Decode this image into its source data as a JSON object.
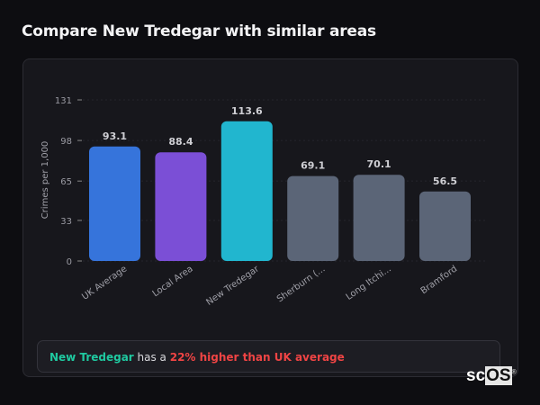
{
  "title": "Compare New Tredegar with similar areas",
  "chart_data": {
    "type": "bar",
    "title": "",
    "xlabel": "",
    "ylabel": "Crimes per 1,000",
    "ylim": [
      0,
      131
    ],
    "yticks": [
      0,
      33,
      65,
      98,
      131
    ],
    "grid": true,
    "categories": [
      "UK Average",
      "Local Area",
      "New Tredegar",
      "Sherburn (...",
      "Long Itchi...",
      "Bramford"
    ],
    "values": [
      93.1,
      88.4,
      113.6,
      69.1,
      70.1,
      56.5
    ],
    "data_labels": [
      "93.1",
      "88.4",
      "113.6",
      "69.1",
      "70.1",
      "56.5"
    ],
    "colors": [
      "#3674db",
      "#7b4fd6",
      "#21b6cf",
      "#5b6577",
      "#5b6577",
      "#5b6577"
    ]
  },
  "insight": {
    "area": "New Tredegar",
    "middle": " has a ",
    "comparison": "22% higher than UK average"
  },
  "logo": {
    "text_a": "sc",
    "text_b": "OS",
    "mark": "®"
  }
}
